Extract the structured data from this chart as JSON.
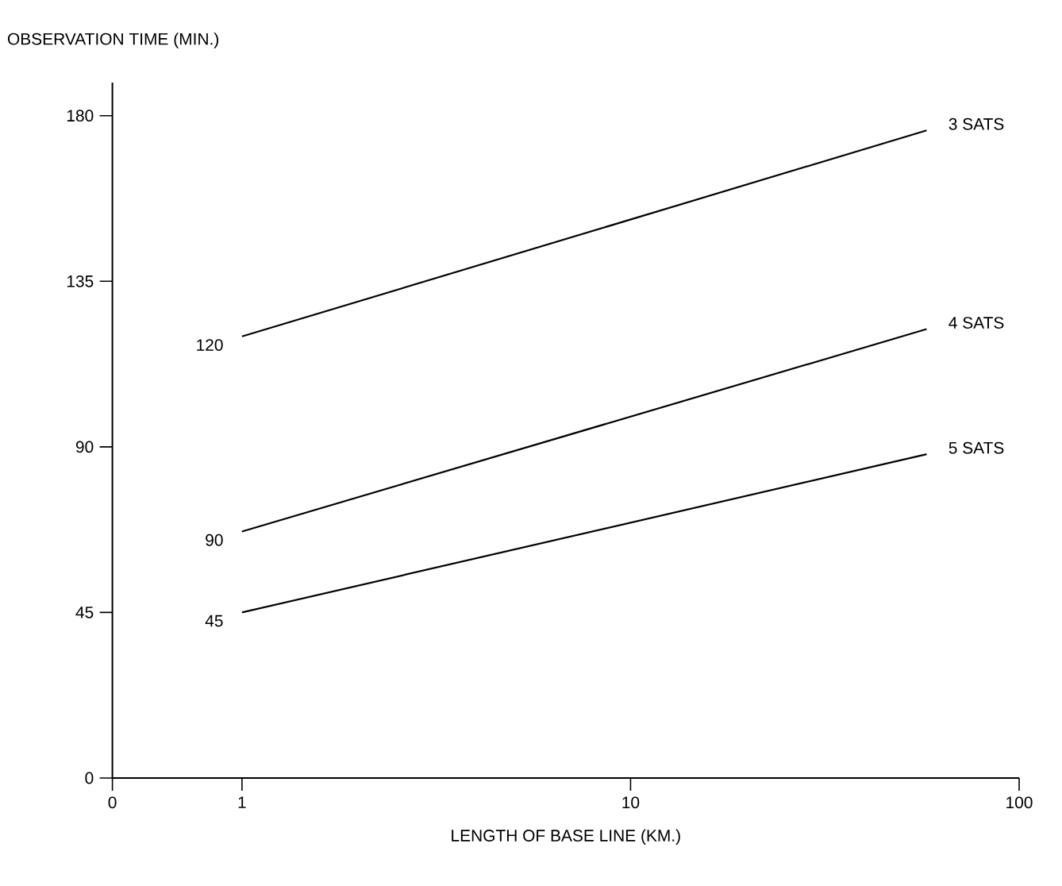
{
  "chart_data": {
    "type": "line",
    "xlabel": "LENGTH OF BASE LINE (KM.)",
    "ylabel": "OBSERVATION TIME (MIN.)",
    "log": "x",
    "x": [
      1,
      57.8
    ],
    "xlim": [
      0.464,
      100
    ],
    "xticks": [
      {
        "value": 0.464,
        "label": "0"
      },
      1,
      10,
      100
    ],
    "ylim": [
      0,
      189
    ],
    "yticks": [
      0,
      45,
      90,
      135,
      180
    ],
    "line_style": "solid",
    "series": [
      {
        "name": "3 SATS",
        "color": "#000000",
        "values": [
          120,
          176
        ]
      },
      {
        "name": "4 SATS",
        "color": "#000000",
        "values": [
          67,
          122
        ]
      },
      {
        "name": "5 SATS",
        "color": "#000000",
        "values": [
          45,
          88
        ]
      }
    ],
    "annotations": [
      "120",
      "90",
      "45"
    ]
  }
}
